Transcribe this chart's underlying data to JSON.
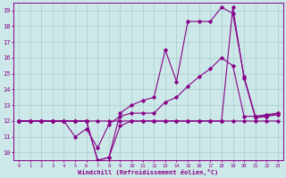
{
  "bg_color": "#cce8e8",
  "line_color": "#880088",
  "grid_color": "#aacccc",
  "xlabel": "Windchill (Refroidissement éolien,°C)",
  "xlim": [
    -0.5,
    23.5
  ],
  "ylim": [
    9.5,
    19.5
  ],
  "xticks": [
    0,
    1,
    2,
    3,
    4,
    5,
    6,
    7,
    8,
    9,
    10,
    11,
    12,
    13,
    14,
    15,
    16,
    17,
    18,
    19,
    20,
    21,
    22,
    23
  ],
  "yticks": [
    10,
    11,
    12,
    13,
    14,
    15,
    16,
    17,
    18,
    19
  ],
  "lines": [
    {
      "x": [
        0,
        1,
        2,
        3,
        4,
        5,
        6,
        7,
        8,
        9,
        10,
        11,
        12,
        13,
        14,
        15,
        16,
        17,
        18,
        19,
        20,
        21,
        22,
        23
      ],
      "y": [
        12,
        12,
        12,
        12,
        12,
        12,
        12,
        9.5,
        9.7,
        11.7,
        12,
        12,
        12,
        12,
        12,
        12,
        12,
        12,
        12,
        12,
        12,
        12,
        12,
        12
      ]
    },
    {
      "x": [
        0,
        1,
        2,
        3,
        4,
        5,
        6,
        7,
        8,
        9,
        10,
        11,
        12,
        13,
        14,
        15,
        16,
        17,
        18,
        19,
        20,
        21,
        22,
        23
      ],
      "y": [
        12,
        12,
        12,
        12,
        12,
        12,
        12,
        9.5,
        9.7,
        12.5,
        13,
        13.3,
        13.5,
        16.5,
        14.5,
        18.3,
        18.3,
        18.3,
        19.2,
        18.8,
        14.8,
        12.3,
        12.3,
        12.5
      ]
    },
    {
      "x": [
        0,
        1,
        2,
        3,
        4,
        5,
        6,
        7,
        8,
        9,
        10,
        11,
        12,
        13,
        14,
        15,
        16,
        17,
        18,
        19,
        20,
        21,
        22,
        23
      ],
      "y": [
        12,
        12,
        12,
        12,
        12,
        11,
        11.5,
        10.3,
        11.8,
        12.3,
        12.5,
        12.5,
        12.5,
        13.2,
        13.5,
        14.2,
        14.8,
        15.3,
        16,
        15.5,
        12.3,
        12.3,
        12.4,
        12.5
      ]
    },
    {
      "x": [
        0,
        1,
        2,
        3,
        4,
        5,
        6,
        7,
        8,
        9,
        10,
        11,
        12,
        13,
        14,
        15,
        16,
        17,
        18,
        19,
        20,
        21,
        22,
        23
      ],
      "y": [
        12,
        12,
        12,
        12,
        12,
        12,
        12,
        12,
        12,
        12,
        12,
        12,
        12,
        12,
        12,
        12,
        12,
        12,
        12,
        19.2,
        14.7,
        12.2,
        12.3,
        12.4
      ]
    }
  ]
}
